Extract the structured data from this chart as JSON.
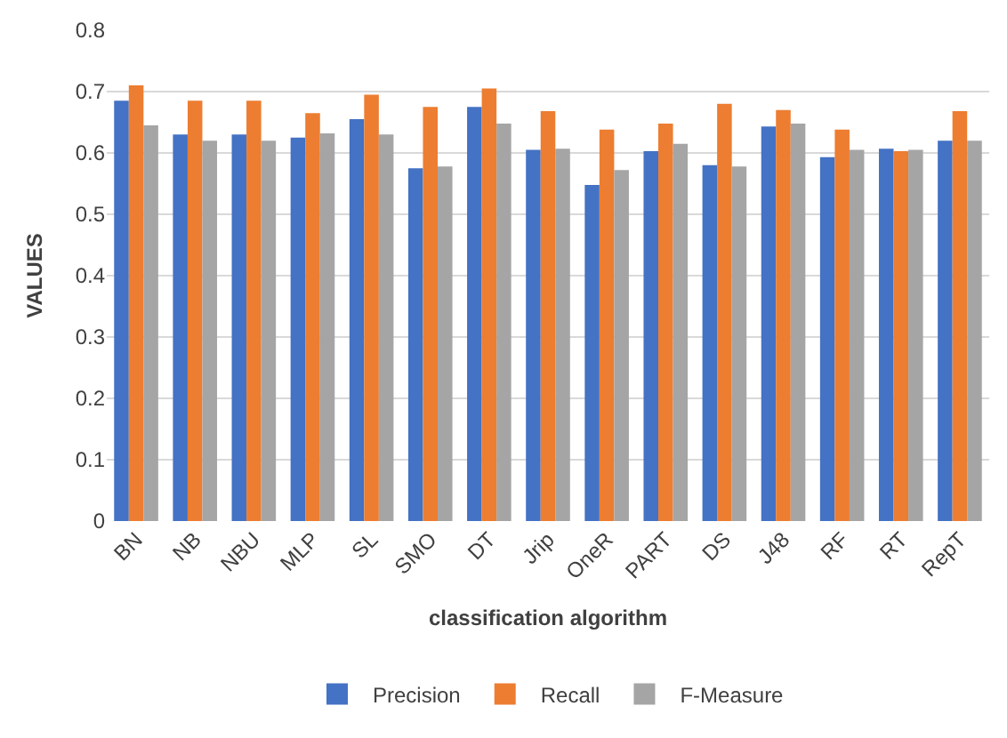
{
  "chart_data": {
    "type": "bar",
    "xlabel": "classification algorithm",
    "ylabel": "VALUES",
    "categories": [
      "BN",
      "NB",
      "NBU",
      "MLP",
      "SL",
      "SMO",
      "DT",
      "Jrip",
      "OneR",
      "PART",
      "DS",
      "J48",
      "RF",
      "RT",
      "RepT"
    ],
    "series": [
      {
        "name": "Precision",
        "color": "#4472c4",
        "values": [
          0.685,
          0.63,
          0.63,
          0.625,
          0.655,
          0.575,
          0.675,
          0.605,
          0.548,
          0.603,
          0.58,
          0.643,
          0.593,
          0.607,
          0.62
        ]
      },
      {
        "name": "Recall",
        "color": "#ed7d31",
        "values": [
          0.71,
          0.685,
          0.685,
          0.665,
          0.695,
          0.675,
          0.705,
          0.668,
          0.638,
          0.648,
          0.68,
          0.67,
          0.638,
          0.603,
          0.668
        ]
      },
      {
        "name": "F-Measure",
        "color": "#a5a5a5",
        "values": [
          0.645,
          0.62,
          0.62,
          0.632,
          0.63,
          0.578,
          0.648,
          0.607,
          0.572,
          0.615,
          0.578,
          0.648,
          0.605,
          0.605,
          0.62
        ]
      }
    ],
    "ylim": [
      0,
      0.8
    ],
    "yticks": [
      0,
      0.1,
      0.2,
      0.3,
      0.4,
      0.5,
      0.6,
      0.7,
      0.8
    ],
    "grid": "y",
    "legend": "bottom"
  }
}
